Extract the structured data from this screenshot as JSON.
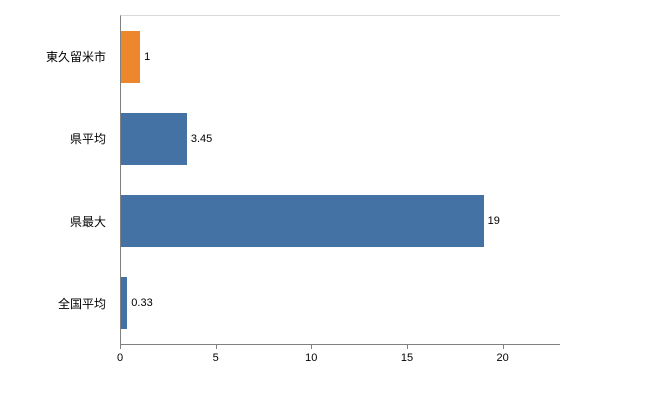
{
  "chart_data": {
    "type": "bar",
    "orientation": "horizontal",
    "title": "",
    "xlabel": "",
    "ylabel": "",
    "categories": [
      "東久留米市",
      "県平均",
      "県最大",
      "全国平均"
    ],
    "values": [
      1,
      3.45,
      19,
      0.33
    ],
    "value_labels": [
      "1",
      "3.45",
      "19",
      "0.33"
    ],
    "bar_colors": [
      "#ed872d",
      "#4472a4",
      "#4472a4",
      "#4472a4"
    ],
    "xlim": [
      0,
      23
    ],
    "xticks": [
      0,
      5,
      10,
      15,
      20
    ],
    "grid": false,
    "legend": false
  },
  "colors": {
    "bar_blue": "#4472a4",
    "bar_orange": "#ed872d",
    "axis_line": "#808080",
    "frame_line": "#d9d9d9",
    "text": "#000000",
    "background": "#ffffff"
  }
}
